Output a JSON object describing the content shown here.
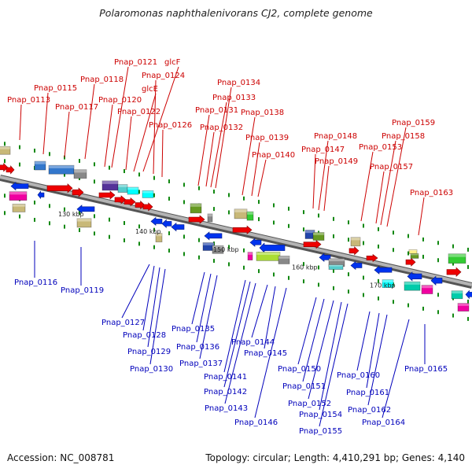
{
  "title": "Polaromonas naphthalenivorans CJ2, complete genome",
  "footer": {
    "accession": "Accession: NC_008781",
    "topology": "Topology: circular; Length: 4,410,291 bp; Genes: 4,140"
  },
  "colors": {
    "top_label": "#cc0000",
    "bottom_label": "#0000bb",
    "backbone": "#8c8c8c",
    "tick": "#118811",
    "forward_gene": "#ee0000",
    "reverse_gene": "#0033ee"
  },
  "scale_labels": [
    "130 kbp",
    "140 kbp",
    "150 kbp",
    "160 kbp",
    "170 kbp"
  ],
  "top_genes": [
    "Pnap_0113",
    "Pnap_0115",
    "Pnap_0117",
    "Pnap_0118",
    "Pnap_0120",
    "Pnap_0121",
    "Pnap_0122",
    "glcE",
    "glcF",
    "Pnap_0124",
    "Pnap_0126",
    "Pnap_0131",
    "Pnap_0132",
    "Pnap_0133",
    "Pnap_0134",
    "Pnap_0138",
    "Pnap_0139",
    "Pnap_0140",
    "Pnap_0147",
    "Pnap_0148",
    "Pnap_0149",
    "Pnap_0153",
    "Pnap_0157",
    "Pnap_0158",
    "Pnap_0159",
    "Pnap_0163"
  ],
  "bottom_genes": [
    "Pnap_0116",
    "Pnap_0119",
    "Pnap_0127",
    "Pnap_0128",
    "Pnap_0129",
    "Pnap_0130",
    "Pnap_0135",
    "Pnap_0136",
    "Pnap_0137",
    "Pnap_0141",
    "Pnap_0142",
    "Pnap_0143",
    "Pnap_0144",
    "Pnap_0145",
    "Pnap_0146",
    "Pnap_0150",
    "Pnap_0151",
    "Pnap_0152",
    "Pnap_0154",
    "Pnap_0155",
    "Pnap_0160",
    "Pnap_0161",
    "Pnap_0162",
    "Pnap_0164",
    "Pnap_0165"
  ]
}
